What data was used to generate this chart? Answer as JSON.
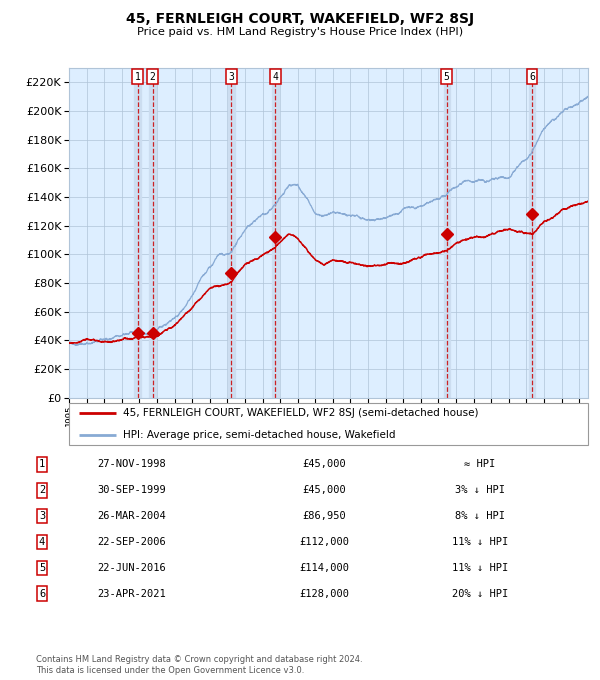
{
  "title": "45, FERNLEIGH COURT, WAKEFIELD, WF2 8SJ",
  "subtitle": "Price paid vs. HM Land Registry's House Price Index (HPI)",
  "transactions": [
    {
      "num": 1,
      "date": "27-NOV-1998",
      "year": 1998.9,
      "price": 45000,
      "hpi_note": "≈ HPI"
    },
    {
      "num": 2,
      "date": "30-SEP-1999",
      "year": 1999.75,
      "price": 45000,
      "hpi_note": "3% ↓ HPI"
    },
    {
      "num": 3,
      "date": "26-MAR-2004",
      "year": 2004.23,
      "price": 86950,
      "hpi_note": "8% ↓ HPI"
    },
    {
      "num": 4,
      "date": "22-SEP-2006",
      "year": 2006.73,
      "price": 112000,
      "hpi_note": "11% ↓ HPI"
    },
    {
      "num": 5,
      "date": "22-JUN-2016",
      "year": 2016.47,
      "price": 114000,
      "hpi_note": "11% ↓ HPI"
    },
    {
      "num": 6,
      "date": "23-APR-2021",
      "year": 2021.31,
      "price": 128000,
      "hpi_note": "20% ↓ HPI"
    }
  ],
  "legend_property": "45, FERNLEIGH COURT, WAKEFIELD, WF2 8SJ (semi-detached house)",
  "legend_hpi": "HPI: Average price, semi-detached house, Wakefield",
  "footer": "Contains HM Land Registry data © Crown copyright and database right 2024.\nThis data is licensed under the Open Government Licence v3.0.",
  "property_color": "#cc0000",
  "hpi_color": "#88aad4",
  "background_color": "#ddeeff",
  "ylim": [
    0,
    230000
  ],
  "xlim_start": 1995.0,
  "xlim_end": 2024.5
}
